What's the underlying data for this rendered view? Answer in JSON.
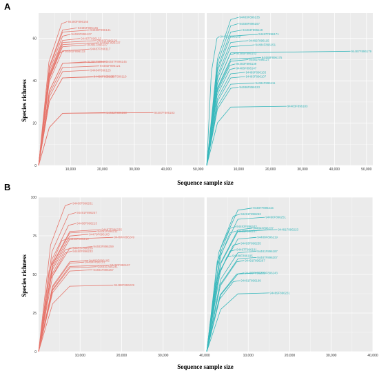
{
  "figure": {
    "panel_labels": [
      "A",
      "B"
    ]
  },
  "colors": {
    "red": "#e6756b",
    "teal": "#38b8bc",
    "panel_bg": "#ebebeb",
    "grid": "#ffffff"
  },
  "chart_data": [
    {
      "type": "line",
      "panel": "A",
      "xlabel": "Sequence sample size",
      "ylabel": "Species richness",
      "facets": [
        {
          "color_key": "red",
          "xlim": [
            0,
            52000
          ],
          "ylim": [
            0,
            72
          ],
          "xticks": [
            10000,
            20000,
            30000,
            40000,
            50000
          ],
          "xtick_labels": [
            "10,000",
            "20,000",
            "30,000",
            "40,000",
            "50,000"
          ],
          "yticks": [
            0,
            20,
            40,
            60
          ],
          "ytick_labels": [
            "0",
            "20",
            "40",
            "60"
          ],
          "series": [
            {
              "name": "94480F896165",
              "end": [
                9000,
                68
              ]
            },
            {
              "name": "94485F896145",
              "end": [
                12000,
                65
              ]
            },
            {
              "name": "94480F896141",
              "end": [
                16000,
                64
              ]
            },
            {
              "name": "94490F896127",
              "end": [
                10000,
                62
              ]
            },
            {
              "name": "94487F896122",
              "end": [
                13000,
                60
              ]
            },
            {
              "name": "94483F896129",
              "end": [
                18000,
                59
              ]
            },
            {
              "name": "94482F896137",
              "end": [
                19000,
                58
              ]
            },
            {
              "name": "94481F896147",
              "end": [
                15000,
                57
              ]
            },
            {
              "name": "94487F896117",
              "end": [
                16000,
                55
              ]
            },
            {
              "name": "94481F896133",
              "end": [
                8000,
                54
              ]
            },
            {
              "name": "94484F896131",
              "end": [
                15000,
                49
              ]
            },
            {
              "name": "94487F896145",
              "end": [
                21000,
                49
              ]
            },
            {
              "name": "94483F896121",
              "end": [
                19000,
                47
              ]
            },
            {
              "name": "94484F896125",
              "end": [
                16000,
                45
              ]
            },
            {
              "name": "94486F896128",
              "end": [
                17000,
                42
              ]
            },
            {
              "name": "94480F896119",
              "end": [
                21000,
                42
              ]
            },
            {
              "name": "94482F896163",
              "end": [
                21000,
                25
              ]
            },
            {
              "name": "94487F896183",
              "end": [
                36000,
                25
              ]
            }
          ]
        },
        {
          "color_key": "teal",
          "xlim": [
            0,
            52000
          ],
          "ylim": [
            0,
            72
          ],
          "xticks": [
            10000,
            20000,
            30000,
            40000,
            50000
          ],
          "xtick_labels": [
            "10,000",
            "20,000",
            "30,000",
            "40,000",
            "50,000"
          ],
          "yticks": [
            0,
            20,
            40,
            60
          ],
          "ytick_labels": [
            "0",
            "20",
            "40",
            "60"
          ],
          "series": [
            {
              "name": "94483F896135",
              "end": [
                10000,
                70
              ]
            },
            {
              "name": "94480F896167",
              "end": [
                10000,
                67
              ]
            },
            {
              "name": "94484F896119",
              "end": [
                11000,
                64
              ]
            },
            {
              "name": "94487F896171",
              "end": [
                16000,
                62
              ]
            },
            {
              "name": "94490F896159",
              "end": [
                4000,
                61
              ]
            },
            {
              "name": "94482F896115",
              "end": [
                13000,
                59
              ]
            },
            {
              "name": "94484F896151",
              "end": [
                15000,
                57
              ]
            },
            {
              "name": "94487F896179",
              "end": [
                45000,
                54
              ]
            },
            {
              "name": "94485F896143",
              "end": [
                9000,
                53
              ]
            },
            {
              "name": "94488F896175",
              "end": [
                17000,
                51
              ]
            },
            {
              "name": "94481F896127",
              "end": [
                13000,
                50
              ]
            },
            {
              "name": "94483F896139",
              "end": [
                9000,
                48
              ]
            },
            {
              "name": "94486F896147",
              "end": [
                9000,
                46
              ]
            },
            {
              "name": "94489F896165",
              "end": [
                12000,
                44
              ]
            },
            {
              "name": "94483F896107",
              "end": [
                12000,
                42
              ]
            },
            {
              "name": "94484F896111",
              "end": [
                15000,
                39
              ]
            },
            {
              "name": "94486F896123",
              "end": [
                10000,
                37
              ]
            },
            {
              "name": "94483F896183",
              "end": [
                25000,
                28
              ]
            }
          ]
        }
      ]
    },
    {
      "type": "line",
      "panel": "B",
      "xlabel": "Sequence sample size",
      "ylabel": "Species richness",
      "facets": [
        {
          "color_key": "red",
          "xlim": [
            0,
            40000
          ],
          "ylim": [
            0,
            100
          ],
          "xticks": [
            10000,
            20000,
            30000,
            40000
          ],
          "xtick_labels": [
            "10,000",
            "20,000",
            "30,000",
            "40,000"
          ],
          "yticks": [
            0,
            25,
            50,
            75,
            100
          ],
          "ytick_labels": [
            "0",
            "25",
            "50",
            "75",
            "100"
          ],
          "series": [
            {
              "name": "94480F896261",
              "end": [
                8000,
                96
              ]
            },
            {
              "name": "94491F896257",
              "end": [
                9000,
                90
              ]
            },
            {
              "name": "94486F896213",
              "end": [
                9000,
                83
              ]
            },
            {
              "name": "94487F896235",
              "end": [
                15000,
                79
              ]
            },
            {
              "name": "94491F896211",
              "end": [
                14000,
                78
              ]
            },
            {
              "name": "94479F896183",
              "end": [
                12000,
                76
              ]
            },
            {
              "name": "94484F896249",
              "end": [
                18000,
                74
              ]
            },
            {
              "name": "94490F896219",
              "end": [
                7000,
                73
              ]
            },
            {
              "name": "94483F896259",
              "end": [
                13000,
                68
              ]
            },
            {
              "name": "94483F896209",
              "end": [
                8000,
                67
              ]
            },
            {
              "name": "94480F896233",
              "end": [
                8000,
                65
              ]
            },
            {
              "name": "94482F896185",
              "end": [
                12000,
                59
              ]
            },
            {
              "name": "94484F896191",
              "end": [
                11000,
                58
              ]
            },
            {
              "name": "94480F896197",
              "end": [
                17000,
                56
              ]
            },
            {
              "name": "94483F896241",
              "end": [
                14000,
                55
              ]
            },
            {
              "name": "94481F896257",
              "end": [
                13000,
                53
              ]
            },
            {
              "name": "94488F896229",
              "end": [
                18000,
                43
              ]
            }
          ]
        },
        {
          "color_key": "teal",
          "xlim": [
            0,
            40000
          ],
          "ylim": [
            0,
            100
          ],
          "xticks": [
            10000,
            20000,
            30000,
            40000
          ],
          "xtick_labels": [
            "10,000",
            "20,000",
            "30,000",
            "40,000"
          ],
          "yticks": [
            0,
            25,
            50,
            75,
            100
          ],
          "ytick_labels": [
            "0",
            "25",
            "50",
            "75",
            "100"
          ],
          "series": [
            {
              "name": "94487F896215",
              "end": [
                11000,
                93
              ]
            },
            {
              "name": "94491F896263",
              "end": [
                8000,
                89
              ]
            },
            {
              "name": "94490F896251",
              "end": [
                14000,
                87
              ]
            },
            {
              "name": "94482F896243",
              "end": [
                7000,
                81
              ]
            },
            {
              "name": "94484F896237",
              "end": [
                11000,
                80
              ]
            },
            {
              "name": "94481F896223",
              "end": [
                17000,
                79
              ]
            },
            {
              "name": "94485F896247",
              "end": [
                7000,
                78
              ]
            },
            {
              "name": "94488F896219",
              "end": [
                12000,
                74
              ]
            },
            {
              "name": "94493F896255",
              "end": [
                8000,
                70
              ]
            },
            {
              "name": "94487F896191",
              "end": [
                7000,
                66
              ]
            },
            {
              "name": "94481F896187",
              "end": [
                12000,
                65
              ]
            },
            {
              "name": "94488F896195",
              "end": [
                6000,
                62
              ]
            },
            {
              "name": "94487F896207",
              "end": [
                12000,
                61
              ]
            },
            {
              "name": "94491F896267",
              "end": [
                9000,
                59
              ]
            },
            {
              "name": "94480F896243",
              "end": [
                12000,
                51
              ]
            },
            {
              "name": "94489F896239",
              "end": [
                9000,
                51
              ]
            },
            {
              "name": "94481F896199",
              "end": [
                8000,
                46
              ]
            },
            {
              "name": "94489F896231",
              "end": [
                15000,
                38
              ]
            }
          ]
        }
      ]
    }
  ]
}
